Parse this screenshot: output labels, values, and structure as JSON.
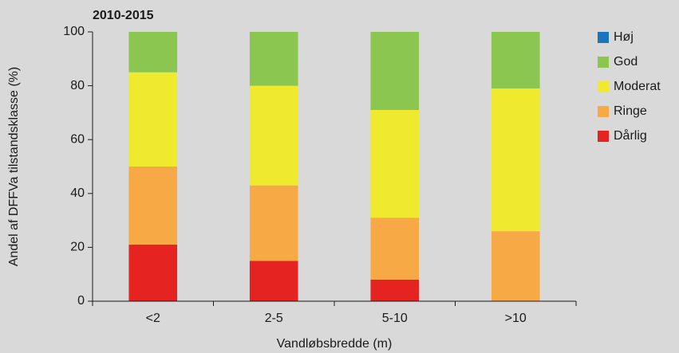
{
  "chart_data": {
    "type": "stacked_bar",
    "title": "2010-2015",
    "x_label": "Vandløbsbredde (m)",
    "y_label": "Andel af DFFVa tilstandsklasse (%)",
    "categories": [
      "<2",
      "2-5",
      "5-10",
      ">10"
    ],
    "series": [
      {
        "name": "Dårlig",
        "color": "#e52421",
        "values": [
          21,
          15,
          8,
          0
        ]
      },
      {
        "name": "Ringe",
        "color": "#f7a945",
        "values": [
          29,
          28,
          23,
          26
        ]
      },
      {
        "name": "Moderat",
        "color": "#f0ea2e",
        "values": [
          35,
          37,
          40,
          53
        ]
      },
      {
        "name": "God",
        "color": "#8ac650",
        "values": [
          15,
          20,
          29,
          21
        ]
      },
      {
        "name": "Høj",
        "color": "#1b75bb",
        "values": [
          0,
          0,
          0,
          0
        ]
      }
    ],
    "ylim": [
      0,
      100
    ],
    "yticks": [
      0,
      20,
      40,
      60,
      80,
      100
    ],
    "grid": false
  }
}
